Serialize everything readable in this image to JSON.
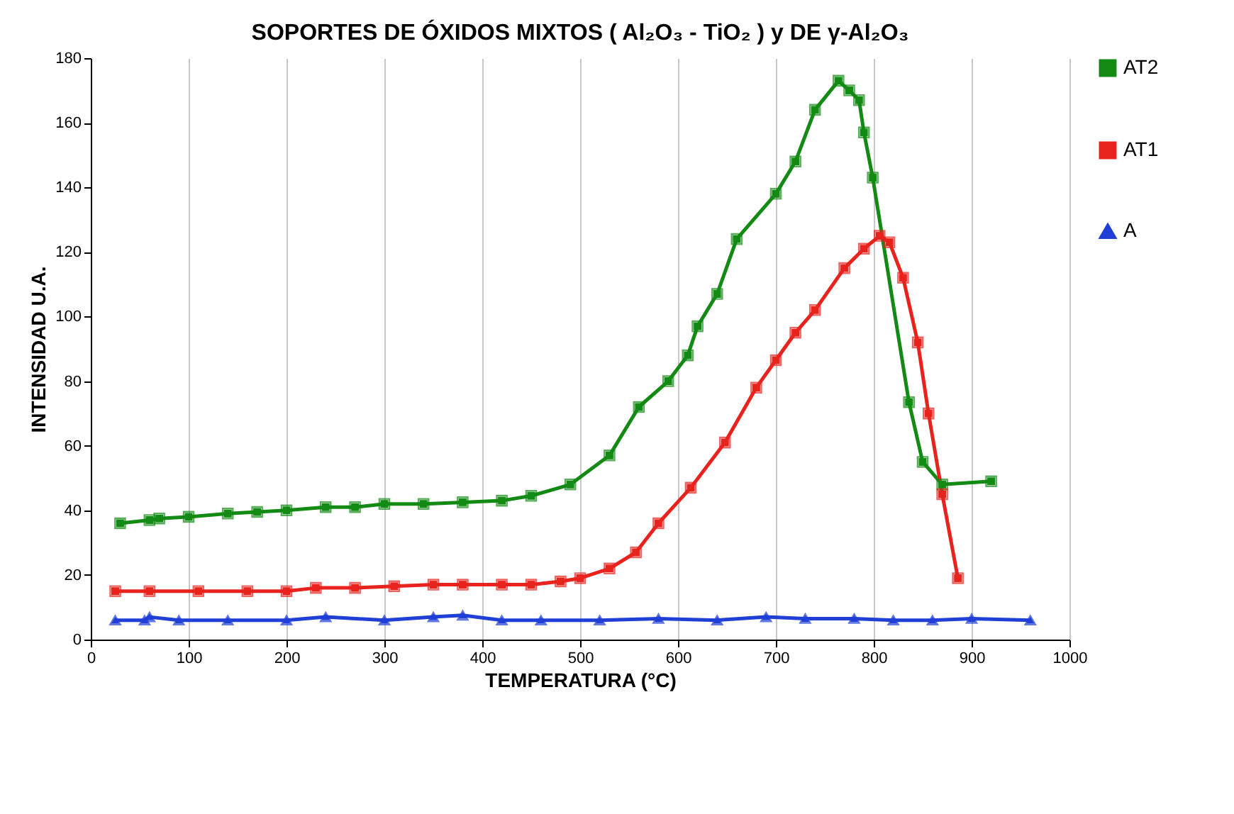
{
  "chart_data": {
    "type": "line",
    "title": "SOPORTES DE ÓXIDOS MIXTOS ( Al₂O₃ - TiO₂ )  y DE γ-Al₂O₃",
    "xlabel": "TEMPERATURA (°C)",
    "ylabel": "INTENSIDAD U.A.",
    "xlim": [
      0,
      1000
    ],
    "xticks": [
      0,
      100,
      200,
      300,
      400,
      500,
      600,
      700,
      800,
      900,
      1000
    ],
    "ylim": [
      0,
      180
    ],
    "yticks": [
      0,
      20,
      40,
      60,
      80,
      100,
      120,
      140,
      160,
      180
    ],
    "grid": "x",
    "legend": "top right",
    "line_style": "solid",
    "series": [
      {
        "name": "AT2",
        "color": "#138a13",
        "marker": "square",
        "x": [
          30,
          60,
          70,
          100,
          140,
          170,
          200,
          240,
          270,
          300,
          340,
          380,
          420,
          450,
          490,
          530,
          560,
          590,
          610,
          620,
          640,
          660,
          700,
          720,
          740,
          764,
          775,
          785,
          790,
          799,
          836,
          850,
          870,
          920
        ],
        "values": [
          36,
          37,
          37.5,
          38,
          39,
          39.5,
          40,
          41,
          41,
          42,
          42,
          42.5,
          43,
          44.5,
          48,
          57,
          72,
          80,
          88,
          97,
          107,
          124,
          138,
          148,
          164,
          173,
          170,
          167,
          157,
          143,
          73.5,
          55,
          48,
          49
        ]
      },
      {
        "name": "AT1",
        "color": "#e8231e",
        "marker": "square",
        "x": [
          25,
          60,
          110,
          160,
          200,
          230,
          270,
          310,
          350,
          380,
          420,
          450,
          480,
          500,
          530,
          557,
          580,
          613,
          648,
          680,
          700,
          720,
          740,
          770,
          790,
          806,
          816,
          830,
          845,
          856,
          870,
          886
        ],
        "values": [
          15,
          15,
          15,
          15,
          15,
          16,
          16,
          16.5,
          17,
          17,
          17,
          17,
          18,
          19,
          22,
          27,
          36,
          47,
          61,
          78,
          86.5,
          95,
          102,
          115,
          121,
          125,
          123,
          112,
          92,
          70,
          45,
          19
        ]
      },
      {
        "name": "A",
        "color": "#1f3fd6",
        "marker": "triangle",
        "x": [
          25,
          55,
          60,
          90,
          140,
          200,
          240,
          300,
          350,
          380,
          420,
          460,
          520,
          580,
          640,
          690,
          730,
          780,
          820,
          860,
          900,
          960
        ],
        "values": [
          6,
          6,
          7,
          6,
          6,
          6,
          7,
          6,
          7,
          7.5,
          6,
          6,
          6,
          6.5,
          6,
          7,
          6.5,
          6.5,
          6,
          6,
          6.5,
          6
        ]
      }
    ]
  }
}
